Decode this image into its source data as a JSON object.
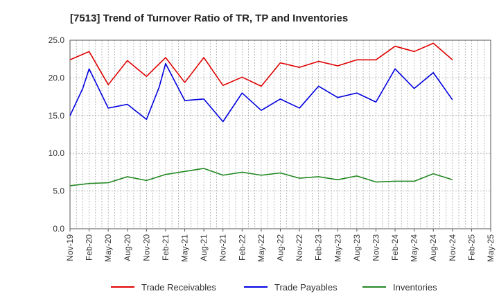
{
  "chart_data": {
    "type": "line",
    "title": "[7513]  Trend of Turnover Ratio of TR, TP and Inventories",
    "xlabel": "",
    "ylabel": "",
    "ylim": [
      0,
      25
    ],
    "yticks": [
      "0.0",
      "5.0",
      "10.0",
      "15.0",
      "20.0",
      "25.0"
    ],
    "x_tick_labels": [
      "Nov-19",
      "Feb-20",
      "May-20",
      "Aug-20",
      "Nov-20",
      "Feb-21",
      "May-21",
      "Aug-21",
      "Nov-21",
      "Feb-22",
      "May-22",
      "Aug-22",
      "Nov-22",
      "Feb-23",
      "May-23",
      "Aug-23",
      "Nov-23",
      "Feb-24",
      "May-24",
      "Aug-24",
      "Nov-24",
      "Feb-25",
      "May-25"
    ],
    "grid": true,
    "legend_position": "bottom",
    "x": [
      "Nov-19",
      "Dec-19",
      "Jan-20",
      "Feb-20",
      "Mar-20",
      "Apr-20",
      "May-20",
      "Jun-20",
      "Jul-20",
      "Aug-20",
      "Sep-20",
      "Oct-20",
      "Nov-20",
      "Dec-20",
      "Jan-21",
      "Feb-21",
      "Mar-21",
      "Apr-21",
      "May-21",
      "Jun-21",
      "Jul-21",
      "Aug-21",
      "Sep-21",
      "Oct-21",
      "Nov-21",
      "Dec-21",
      "Jan-22",
      "Feb-22",
      "Mar-22",
      "Apr-22",
      "May-22",
      "Jun-22",
      "Jul-22",
      "Aug-22",
      "Sep-22",
      "Oct-22",
      "Nov-22",
      "Dec-22",
      "Jan-23",
      "Feb-23",
      "Mar-23",
      "Apr-23",
      "May-23",
      "Jun-23",
      "Jul-23",
      "Aug-23",
      "Sep-23",
      "Oct-23",
      "Nov-23",
      "Dec-23",
      "Jan-24",
      "Feb-24",
      "Mar-24",
      "Apr-24",
      "May-24",
      "Jun-24",
      "Jul-24",
      "Aug-24",
      "Sep-24",
      "Oct-24",
      "Nov-24",
      "Dec-24",
      "Jan-25",
      "Feb-25",
      "Mar-25",
      "Apr-25",
      "May-25"
    ],
    "series": [
      {
        "name": "Trade Receivables",
        "color": "#e00000",
        "points": [
          [
            "Nov-19",
            22.4
          ],
          [
            "Feb-20",
            23.5
          ],
          [
            "May-20",
            19.1
          ],
          [
            "Aug-20",
            22.3
          ],
          [
            "Nov-20",
            20.2
          ],
          [
            "Feb-21",
            22.7
          ],
          [
            "May-21",
            19.4
          ],
          [
            "Aug-21",
            22.7
          ],
          [
            "Nov-21",
            19.0
          ],
          [
            "Feb-22",
            20.1
          ],
          [
            "May-22",
            18.9
          ],
          [
            "Aug-22",
            22.0
          ],
          [
            "Nov-22",
            21.4
          ],
          [
            "Feb-23",
            22.2
          ],
          [
            "May-23",
            21.6
          ],
          [
            "Aug-23",
            22.4
          ],
          [
            "Nov-23",
            22.4
          ],
          [
            "Feb-24",
            24.2
          ],
          [
            "May-24",
            23.5
          ],
          [
            "Aug-24",
            24.6
          ],
          [
            "Nov-24",
            22.4
          ]
        ]
      },
      {
        "name": "Trade Payables",
        "color": "#0000e0",
        "points": [
          [
            "Nov-19",
            15.0
          ],
          [
            "Jan-20",
            18.6
          ],
          [
            "Feb-20",
            21.2
          ],
          [
            "May-20",
            16.0
          ],
          [
            "Aug-20",
            16.5
          ],
          [
            "Nov-20",
            14.5
          ],
          [
            "Jan-21",
            18.8
          ],
          [
            "Feb-21",
            21.9
          ],
          [
            "May-21",
            17.0
          ],
          [
            "Aug-21",
            17.2
          ],
          [
            "Nov-21",
            14.2
          ],
          [
            "Feb-22",
            18.0
          ],
          [
            "May-22",
            15.7
          ],
          [
            "Aug-22",
            17.2
          ],
          [
            "Nov-22",
            16.0
          ],
          [
            "Feb-23",
            18.9
          ],
          [
            "May-23",
            17.4
          ],
          [
            "Aug-23",
            18.0
          ],
          [
            "Nov-23",
            16.8
          ],
          [
            "Feb-24",
            21.2
          ],
          [
            "May-24",
            18.6
          ],
          [
            "Aug-24",
            20.7
          ],
          [
            "Nov-24",
            17.1
          ]
        ]
      },
      {
        "name": "Inventories",
        "color": "#228822",
        "points": [
          [
            "Nov-19",
            5.7
          ],
          [
            "Feb-20",
            6.0
          ],
          [
            "May-20",
            6.1
          ],
          [
            "Aug-20",
            6.9
          ],
          [
            "Nov-20",
            6.4
          ],
          [
            "Feb-21",
            7.2
          ],
          [
            "May-21",
            7.6
          ],
          [
            "Aug-21",
            8.0
          ],
          [
            "Nov-21",
            7.1
          ],
          [
            "Feb-22",
            7.5
          ],
          [
            "May-22",
            7.1
          ],
          [
            "Aug-22",
            7.4
          ],
          [
            "Nov-22",
            6.7
          ],
          [
            "Feb-23",
            6.9
          ],
          [
            "May-23",
            6.5
          ],
          [
            "Aug-23",
            7.0
          ],
          [
            "Nov-23",
            6.2
          ],
          [
            "Feb-24",
            6.3
          ],
          [
            "May-24",
            6.3
          ],
          [
            "Aug-24",
            7.3
          ],
          [
            "Nov-24",
            6.5
          ]
        ]
      }
    ]
  }
}
